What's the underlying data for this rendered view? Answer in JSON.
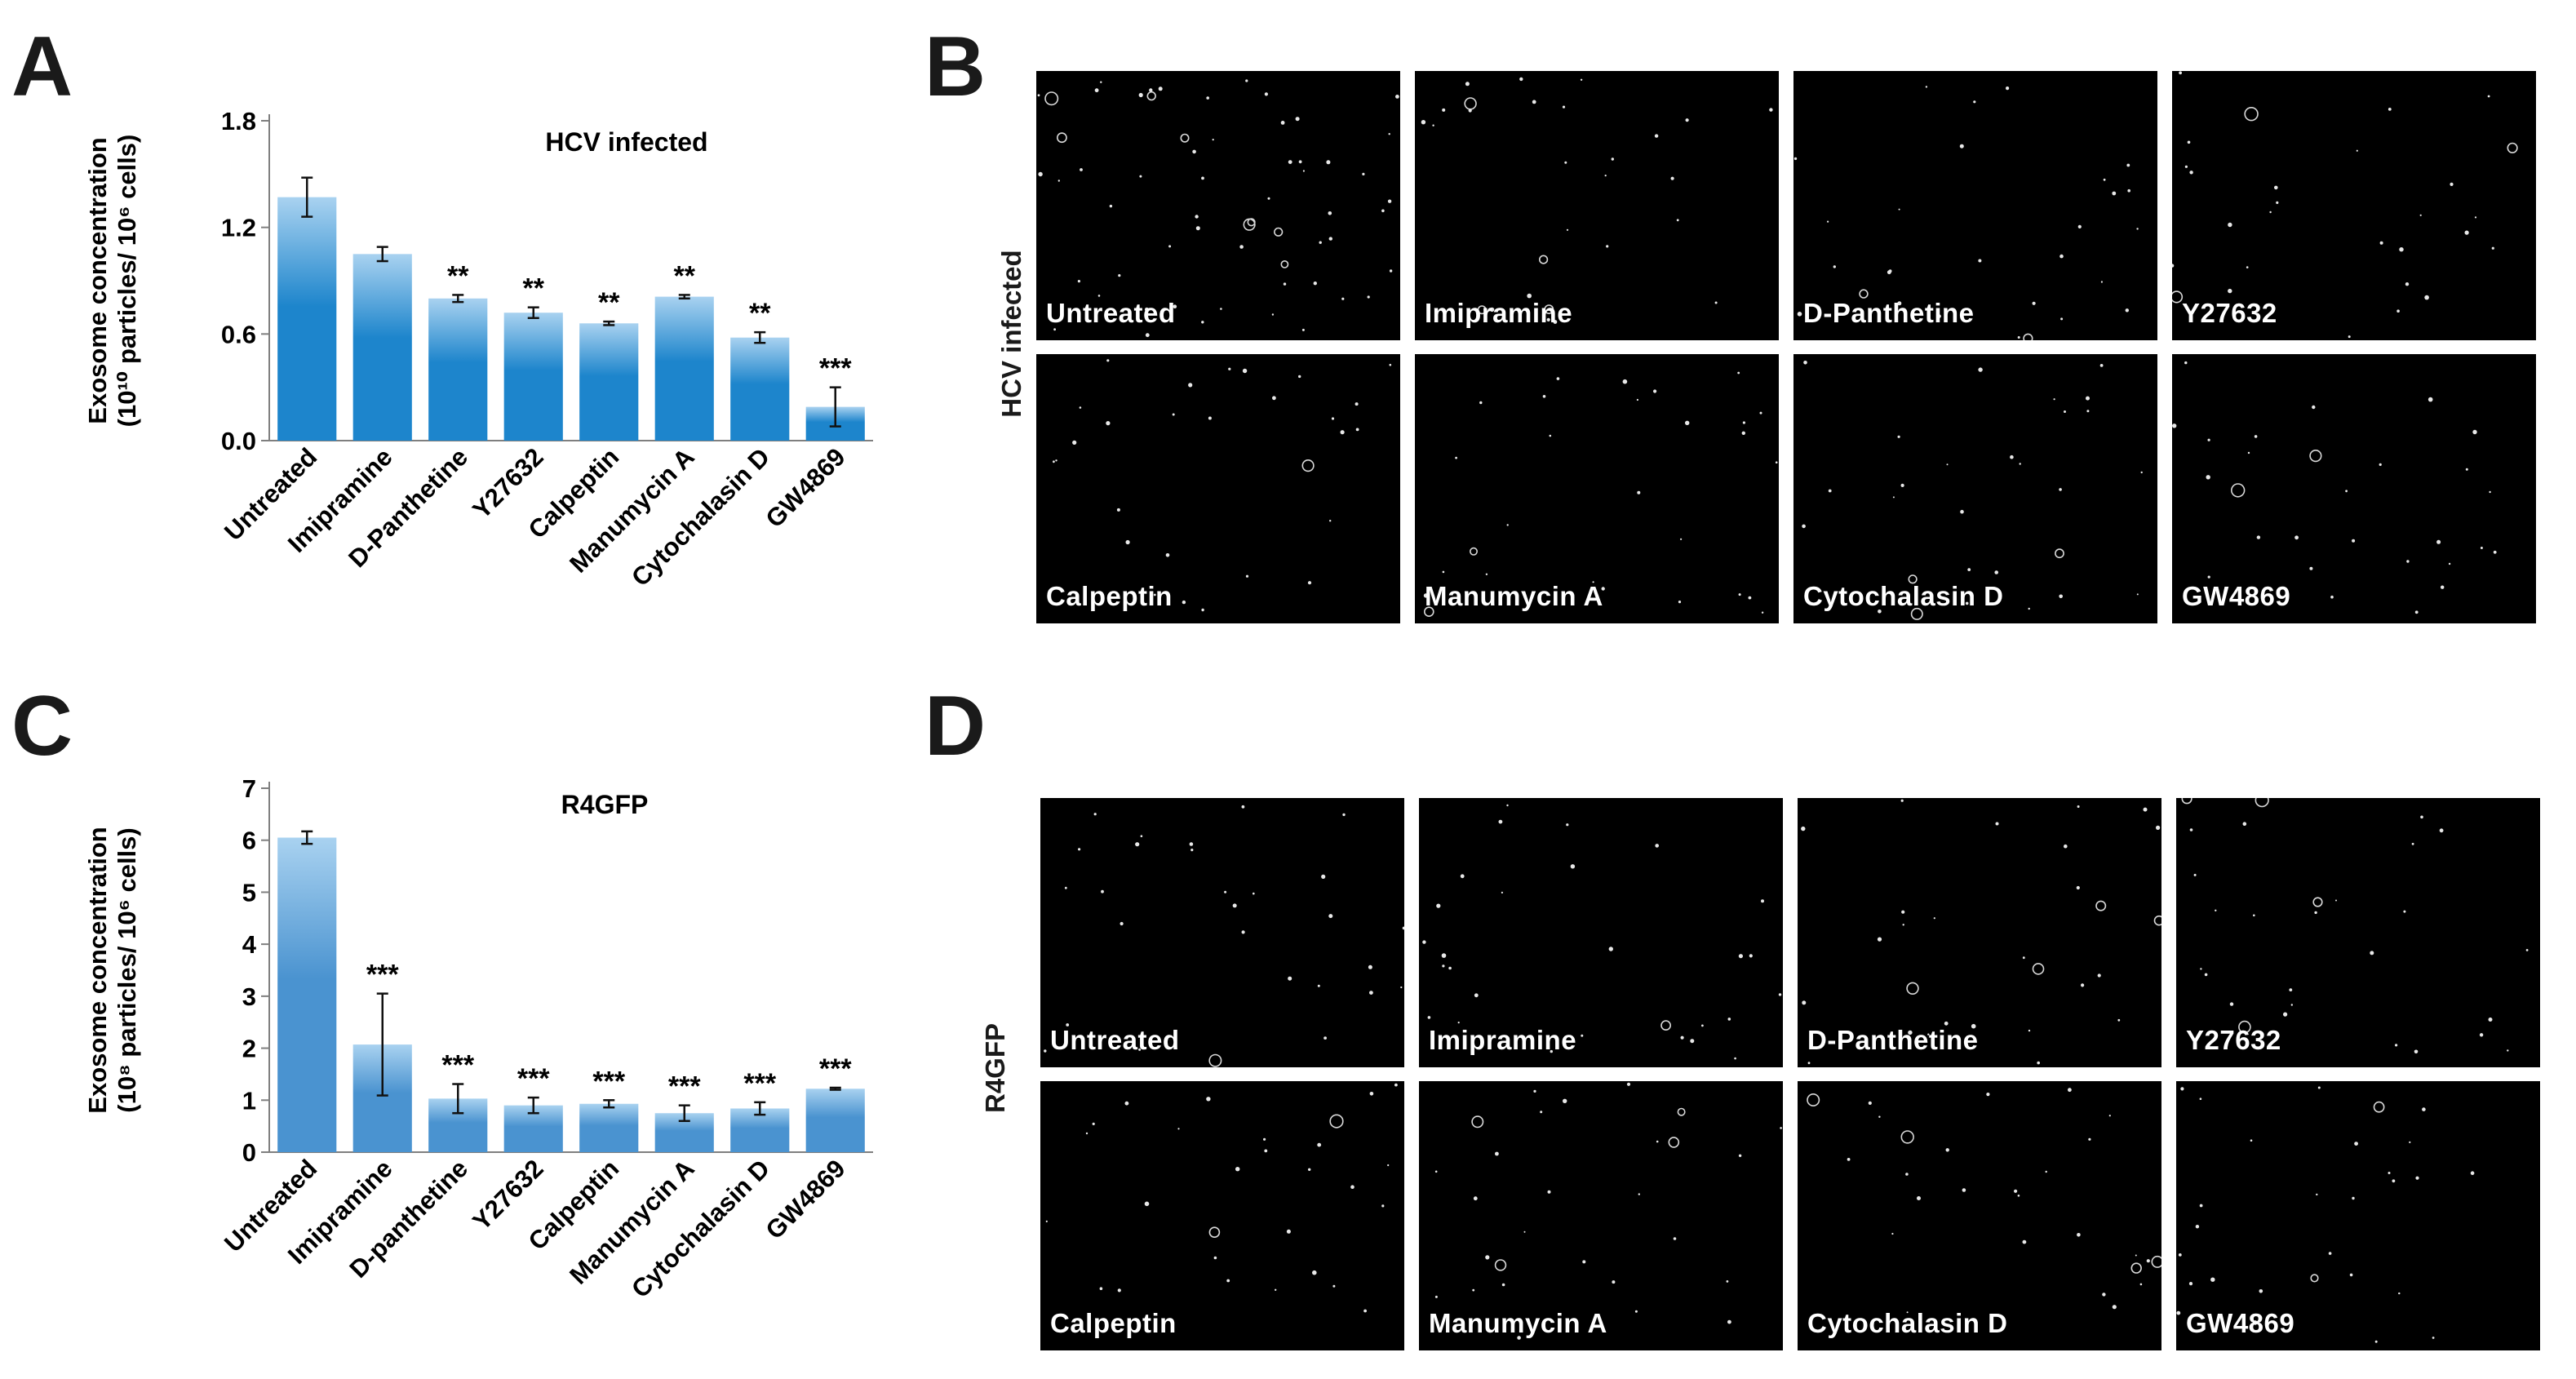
{
  "panels": {
    "A": "A",
    "B": "B",
    "C": "C",
    "D": "D"
  },
  "chart_data": [
    {
      "type": "bar",
      "panel": "A",
      "title": "HCV infected",
      "ylabel_line1": "Exosome concentration",
      "ylabel_line2": "(10¹⁰ particles/ 10⁶ cells)",
      "categories": [
        "Untreated",
        "Imipramine",
        "D-Panthetine",
        "Y27632",
        "Calpeptin",
        "Manumycin A",
        "Cytochalasin D",
        "GW4869"
      ],
      "values": [
        1.37,
        1.05,
        0.8,
        0.72,
        0.66,
        0.81,
        0.58,
        0.19
      ],
      "errors": [
        0.11,
        0.04,
        0.02,
        0.03,
        0.01,
        0.01,
        0.03,
        0.11
      ],
      "significance": [
        "",
        "",
        "**",
        "**",
        "**",
        "**",
        "**",
        "***"
      ],
      "ylim": [
        0,
        1.8
      ],
      "yticks": [
        "0.0",
        "0.6",
        "1.2",
        "1.8"
      ],
      "bar_color": "#1d85cc"
    },
    {
      "type": "bar",
      "panel": "C",
      "title": "R4GFP",
      "ylabel_line1": "Exosome concentration",
      "ylabel_line2": "(10⁸ particles/ 10⁶ cells)",
      "categories": [
        "Untreated",
        "Imipramine",
        "D-panthetine",
        "Y27632",
        "Calpeptin",
        "Manumycin A",
        "Cytochalasin D",
        "GW4869"
      ],
      "values": [
        6.05,
        2.07,
        1.03,
        0.9,
        0.93,
        0.75,
        0.84,
        1.22
      ],
      "errors": [
        0.12,
        0.98,
        0.28,
        0.15,
        0.07,
        0.15,
        0.12,
        0.02
      ],
      "significance": [
        "",
        "***",
        "***",
        "***",
        "***",
        "***",
        "***",
        "***"
      ],
      "ylim": [
        0,
        7
      ],
      "yticks": [
        "0",
        "1",
        "2",
        "3",
        "4",
        "5",
        "6",
        "7"
      ],
      "bar_color": "#4a93d0"
    }
  ],
  "micrographs": {
    "B": {
      "side_label": "HCV infected",
      "tiles": [
        "Untreated",
        "Imipramine",
        "D-Panthetine",
        "Y27632",
        "Calpeptin",
        "Manumycin A",
        "Cytochalasin D",
        "GW4869"
      ]
    },
    "D": {
      "side_label": "R4GFP",
      "tiles": [
        "Untreated",
        "Imipramine",
        "D-Panthetine",
        "Y27632",
        "Calpeptin",
        "Manumycin A",
        "Cytochalasin D",
        "GW4869"
      ]
    }
  }
}
